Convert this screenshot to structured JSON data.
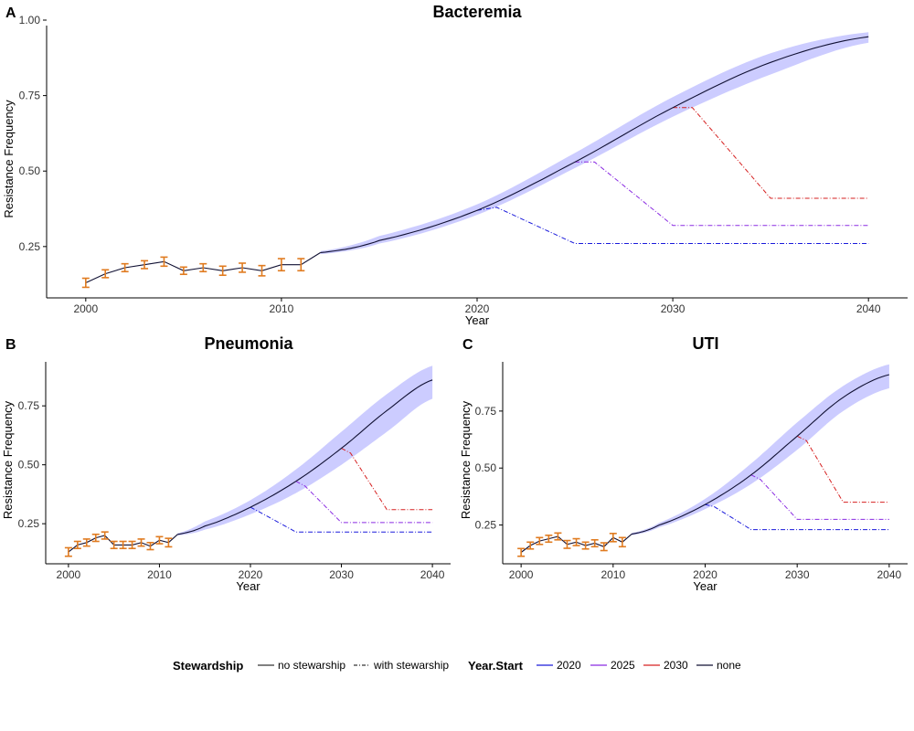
{
  "colors": {
    "band": "#ccccff",
    "none": "#111133",
    "y2020": "#1a1adb",
    "y2025": "#8a2be2",
    "y2030": "#d62020",
    "observed": "#e07b20",
    "axis": "#000000"
  },
  "legend": {
    "stewardship_title": "Stewardship",
    "stewardship_items": [
      {
        "label": "no stewarship",
        "dash": "solid"
      },
      {
        "label": "with stewarship",
        "dash": "dotdash"
      }
    ],
    "year_title": "Year.Start",
    "year_items": [
      {
        "label": "2020",
        "color_key": "y2020"
      },
      {
        "label": "2025",
        "color_key": "y2025"
      },
      {
        "label": "2030",
        "color_key": "y2030"
      },
      {
        "label": "none",
        "color_key": "none"
      }
    ]
  },
  "chart_data": [
    {
      "panel": "A",
      "type": "line",
      "title": "Bacteremia",
      "xlabel": "Year",
      "ylabel": "Resistance Frequency",
      "xlim": [
        1998,
        2042
      ],
      "ylim": [
        0.08,
        1.0
      ],
      "xticks": [
        2000,
        2010,
        2020,
        2030,
        2040
      ],
      "yticks": [
        0.25,
        0.5,
        0.75,
        1.0
      ],
      "ytick_labels": [
        "0.25",
        "0.50",
        "0.75",
        "1.00"
      ],
      "observed": {
        "years": [
          2000,
          2001,
          2002,
          2003,
          2004,
          2005,
          2006,
          2007,
          2008,
          2009,
          2010,
          2011
        ],
        "values": [
          0.13,
          0.16,
          0.18,
          0.19,
          0.2,
          0.17,
          0.18,
          0.17,
          0.18,
          0.17,
          0.19,
          0.19
        ],
        "err": [
          0.015,
          0.013,
          0.013,
          0.013,
          0.015,
          0.012,
          0.013,
          0.015,
          0.015,
          0.017,
          0.02,
          0.02
        ]
      },
      "projection": {
        "x": [
          2012,
          2015,
          2020,
          2025,
          2030,
          2035,
          2040
        ],
        "y": [
          0.23,
          0.27,
          0.37,
          0.53,
          0.71,
          0.86,
          0.945
        ],
        "lower": [
          0.225,
          0.26,
          0.355,
          0.51,
          0.68,
          0.82,
          0.925
        ],
        "upper": [
          0.235,
          0.285,
          0.39,
          0.56,
          0.745,
          0.89,
          0.96
        ]
      },
      "stewardship_series": [
        {
          "start": "2020",
          "x": [
            2020,
            2021,
            2025,
            2040
          ],
          "y": [
            0.37,
            0.38,
            0.26,
            0.26
          ]
        },
        {
          "start": "2025",
          "x": [
            2025,
            2026,
            2030,
            2040
          ],
          "y": [
            0.53,
            0.53,
            0.32,
            0.32
          ]
        },
        {
          "start": "2030",
          "x": [
            2030,
            2031,
            2035,
            2040
          ],
          "y": [
            0.71,
            0.71,
            0.41,
            0.41
          ]
        }
      ]
    },
    {
      "panel": "B",
      "type": "line",
      "title": "Pneumonia",
      "xlabel": "Year",
      "ylabel": "Resistance Frequency",
      "xlim": [
        1997.5,
        2042
      ],
      "ylim": [
        0.08,
        0.96
      ],
      "xticks": [
        2000,
        2010,
        2020,
        2030,
        2040
      ],
      "yticks": [
        0.25,
        0.5,
        0.75
      ],
      "ytick_labels": [
        "0.25",
        "0.50",
        "0.75"
      ],
      "observed": {
        "years": [
          2000,
          2001,
          2002,
          2003,
          2004,
          2005,
          2006,
          2007,
          2008,
          2009,
          2010,
          2011
        ],
        "values": [
          0.13,
          0.16,
          0.17,
          0.19,
          0.2,
          0.16,
          0.16,
          0.16,
          0.17,
          0.155,
          0.18,
          0.17
        ],
        "err": [
          0.018,
          0.015,
          0.015,
          0.015,
          0.015,
          0.015,
          0.015,
          0.015,
          0.015,
          0.015,
          0.015,
          0.018
        ]
      },
      "projection": {
        "x": [
          2012,
          2015,
          2020,
          2025,
          2030,
          2035,
          2040
        ],
        "y": [
          0.205,
          0.24,
          0.32,
          0.43,
          0.57,
          0.73,
          0.86
        ],
        "lower": [
          0.2,
          0.225,
          0.29,
          0.38,
          0.5,
          0.64,
          0.78
        ],
        "upper": [
          0.21,
          0.26,
          0.35,
          0.48,
          0.64,
          0.8,
          0.92
        ]
      },
      "stewardship_series": [
        {
          "start": "2020",
          "x": [
            2020,
            2021,
            2025,
            2040
          ],
          "y": [
            0.32,
            0.3,
            0.215,
            0.215
          ]
        },
        {
          "start": "2025",
          "x": [
            2025,
            2026,
            2030,
            2040
          ],
          "y": [
            0.43,
            0.41,
            0.255,
            0.255
          ]
        },
        {
          "start": "2030",
          "x": [
            2030,
            2031,
            2035,
            2040
          ],
          "y": [
            0.57,
            0.55,
            0.31,
            0.31
          ]
        }
      ]
    },
    {
      "panel": "C",
      "type": "line",
      "title": "UTI",
      "xlabel": "Year",
      "ylabel": "Resistance Frequency",
      "xlim": [
        1998,
        2042
      ],
      "ylim": [
        0.08,
        0.99
      ],
      "xticks": [
        2000,
        2010,
        2020,
        2030,
        2040
      ],
      "yticks": [
        0.25,
        0.5,
        0.75
      ],
      "ytick_labels": [
        "0.25",
        "0.50",
        "0.75"
      ],
      "observed": {
        "years": [
          2000,
          2001,
          2002,
          2003,
          2004,
          2005,
          2006,
          2007,
          2008,
          2009,
          2010,
          2011
        ],
        "values": [
          0.13,
          0.16,
          0.18,
          0.19,
          0.2,
          0.165,
          0.175,
          0.16,
          0.17,
          0.155,
          0.195,
          0.175
        ],
        "err": [
          0.017,
          0.015,
          0.015,
          0.015,
          0.015,
          0.017,
          0.015,
          0.015,
          0.015,
          0.017,
          0.018,
          0.02
        ]
      },
      "projection": {
        "x": [
          2012,
          2015,
          2020,
          2025,
          2030,
          2035,
          2040
        ],
        "y": [
          0.21,
          0.25,
          0.34,
          0.47,
          0.64,
          0.81,
          0.91
        ],
        "lower": [
          0.205,
          0.24,
          0.32,
          0.43,
          0.58,
          0.75,
          0.85
        ],
        "upper": [
          0.215,
          0.26,
          0.365,
          0.52,
          0.7,
          0.86,
          0.955
        ]
      },
      "stewardship_series": [
        {
          "start": "2020",
          "x": [
            2020,
            2021,
            2025,
            2040
          ],
          "y": [
            0.34,
            0.33,
            0.23,
            0.23
          ]
        },
        {
          "start": "2025",
          "x": [
            2025,
            2026,
            2030,
            2040
          ],
          "y": [
            0.47,
            0.45,
            0.275,
            0.275
          ]
        },
        {
          "start": "2030",
          "x": [
            2030,
            2031,
            2035,
            2040
          ],
          "y": [
            0.64,
            0.62,
            0.35,
            0.35
          ]
        }
      ]
    }
  ]
}
